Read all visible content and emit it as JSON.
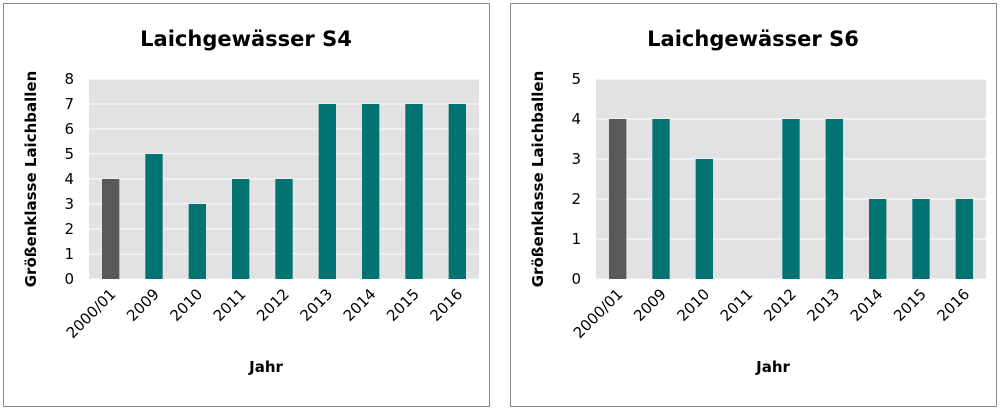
{
  "chart_data": [
    {
      "type": "bar",
      "title": "Laichgewässer S4",
      "xlabel": "Jahr",
      "ylabel": "Größenklasse Laichballen",
      "categories": [
        "2000/01",
        "2009",
        "2010",
        "2011",
        "2012",
        "2013",
        "2014",
        "2015",
        "2016"
      ],
      "values": [
        4,
        5,
        3,
        4,
        4,
        7,
        7,
        7,
        7
      ],
      "ylim": [
        0,
        8
      ],
      "yticks": [
        "0",
        "1",
        "2",
        "3",
        "4",
        "5",
        "6",
        "7",
        "8"
      ],
      "grid": true,
      "bar_colors": [
        "#595959",
        "#007372",
        "#007372",
        "#007372",
        "#007372",
        "#007372",
        "#007372",
        "#007372",
        "#007372"
      ],
      "plot_background": "#e2e2e2"
    },
    {
      "type": "bar",
      "title": "Laichgewässer S6",
      "xlabel": "Jahr",
      "ylabel": "Größenklasse Laichballen",
      "categories": [
        "2000/01",
        "2009",
        "2010",
        "2011",
        "2012",
        "2013",
        "2014",
        "2015",
        "2016"
      ],
      "values": [
        4,
        4,
        3,
        0,
        4,
        4,
        2,
        2,
        2
      ],
      "ylim": [
        0,
        5
      ],
      "yticks": [
        "0",
        "1",
        "2",
        "3",
        "4",
        "5"
      ],
      "grid": true,
      "bar_colors": [
        "#595959",
        "#007372",
        "#007372",
        "#007372",
        "#007372",
        "#007372",
        "#007372",
        "#007372",
        "#007372"
      ],
      "plot_background": "#e2e2e2"
    }
  ]
}
